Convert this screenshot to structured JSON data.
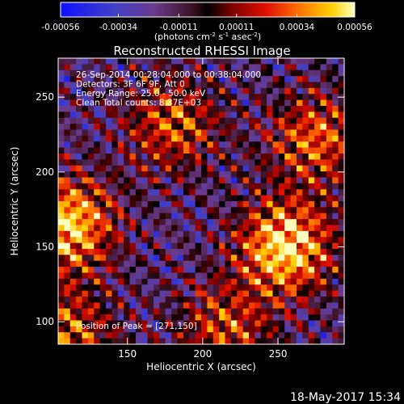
{
  "chart_data": {
    "type": "heatmap",
    "title": "Reconstructed RHESSI Image",
    "xlabel": "Heliocentric X (arcsec)",
    "ylabel": "Heliocentric Y (arcsec)",
    "xlim": [
      104,
      294
    ],
    "ylim": [
      85,
      276
    ],
    "x_ticks": [
      150,
      200,
      250
    ],
    "y_ticks": [
      100,
      150,
      200,
      250
    ],
    "colorbar": {
      "range": [
        -0.00056,
        0.00056
      ],
      "tick_values": [
        -0.00056,
        -0.00034,
        -0.00011,
        0.00011,
        0.00034,
        0.00056
      ],
      "tick_labels": [
        "-0.00056",
        "-0.00034",
        "-0.00011",
        "0.00011",
        "0.00034",
        "0.00056"
      ],
      "units_label": "(photons cm",
      "units_sup1": "-2",
      "units_mid": " s",
      "units_sup2": "-1",
      "units_mid2": " asec",
      "units_sup3": "-2",
      "units_end": ")"
    },
    "annotations": [
      "26-Sep-2014 00:28:04.000 to 00:38:04.000",
      "Detectors: 3F 6F 9F, Att 0",
      "Energy Range: 25.0 - 50.0 keV",
      "Clean     Total counts: 8.37E+03"
    ],
    "peak_label": "Position of Peak = [271,150]",
    "peak_position": [
      271,
      150
    ],
    "sources": [
      {
        "x": 110,
        "y": 165,
        "strength": 0.95
      },
      {
        "x": 255,
        "y": 150,
        "strength": 1.0
      },
      {
        "x": 180,
        "y": 232,
        "strength": 0.6
      },
      {
        "x": 275,
        "y": 222,
        "strength": 0.65
      },
      {
        "x": 215,
        "y": 95,
        "strength": 0.55
      },
      {
        "x": 110,
        "y": 92,
        "strength": 0.6
      }
    ]
  },
  "footer": {
    "timestamp": "18-May-2017 15:34"
  }
}
